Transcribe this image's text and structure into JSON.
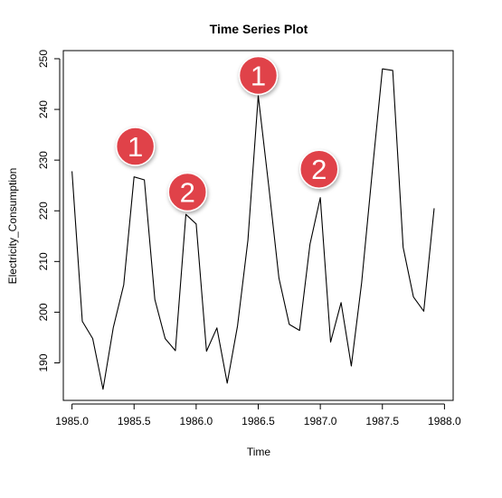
{
  "chart_data": {
    "type": "line",
    "title": "Time Series Plot",
    "xlabel": "Time",
    "ylabel": "Electricity_Consumption",
    "xlim": [
      1984.93,
      1988.07
    ],
    "ylim": [
      182.6,
      251.6
    ],
    "x_ticks": [
      1985.0,
      1985.5,
      1986.0,
      1986.5,
      1987.0,
      1987.5,
      1988.0
    ],
    "x_tick_labels": [
      "1985.0",
      "1985.5",
      "1986.0",
      "1986.5",
      "1987.0",
      "1987.5",
      "1988.0"
    ],
    "y_ticks": [
      190,
      200,
      210,
      220,
      230,
      240,
      250
    ],
    "y_tick_labels": [
      "190",
      "200",
      "210",
      "220",
      "230",
      "240",
      "250"
    ],
    "grid": false,
    "series": [
      {
        "color": "#000000",
        "x": [
          1985.0,
          1985.083,
          1985.167,
          1985.25,
          1985.333,
          1985.417,
          1985.5,
          1985.583,
          1985.667,
          1985.75,
          1985.833,
          1985.917,
          1986.0,
          1986.083,
          1986.167,
          1986.25,
          1986.333,
          1986.417,
          1986.5,
          1986.583,
          1986.667,
          1986.75,
          1986.833,
          1986.917,
          1987.0,
          1987.083,
          1987.167,
          1987.25,
          1987.333,
          1987.417,
          1987.5,
          1987.583,
          1987.667,
          1987.75,
          1987.833,
          1987.917
        ],
        "values": [
          227.8,
          198.2,
          194.8,
          184.8,
          197.0,
          205.4,
          226.7,
          226.1,
          202.5,
          194.8,
          192.4,
          219.3,
          217.4,
          192.3,
          196.9,
          186.0,
          197.3,
          214.2,
          242.7,
          225.2,
          206.7,
          197.6,
          196.4,
          213.4,
          222.6,
          194.1,
          201.9,
          189.4,
          205.8,
          227.4,
          248.0,
          247.7,
          212.8,
          203.0,
          200.2,
          220.5
        ]
      }
    ],
    "annotations": [
      {
        "label": "1",
        "x": 1985.51,
        "y": 232.7,
        "color": "#e0424a"
      },
      {
        "label": "2",
        "x": 1985.93,
        "y": 223.7,
        "color": "#e0424a"
      },
      {
        "label": "1",
        "x": 1986.5,
        "y": 246.7,
        "color": "#e0424a"
      },
      {
        "label": "2",
        "x": 1986.99,
        "y": 228.2,
        "color": "#e0424a"
      }
    ]
  }
}
